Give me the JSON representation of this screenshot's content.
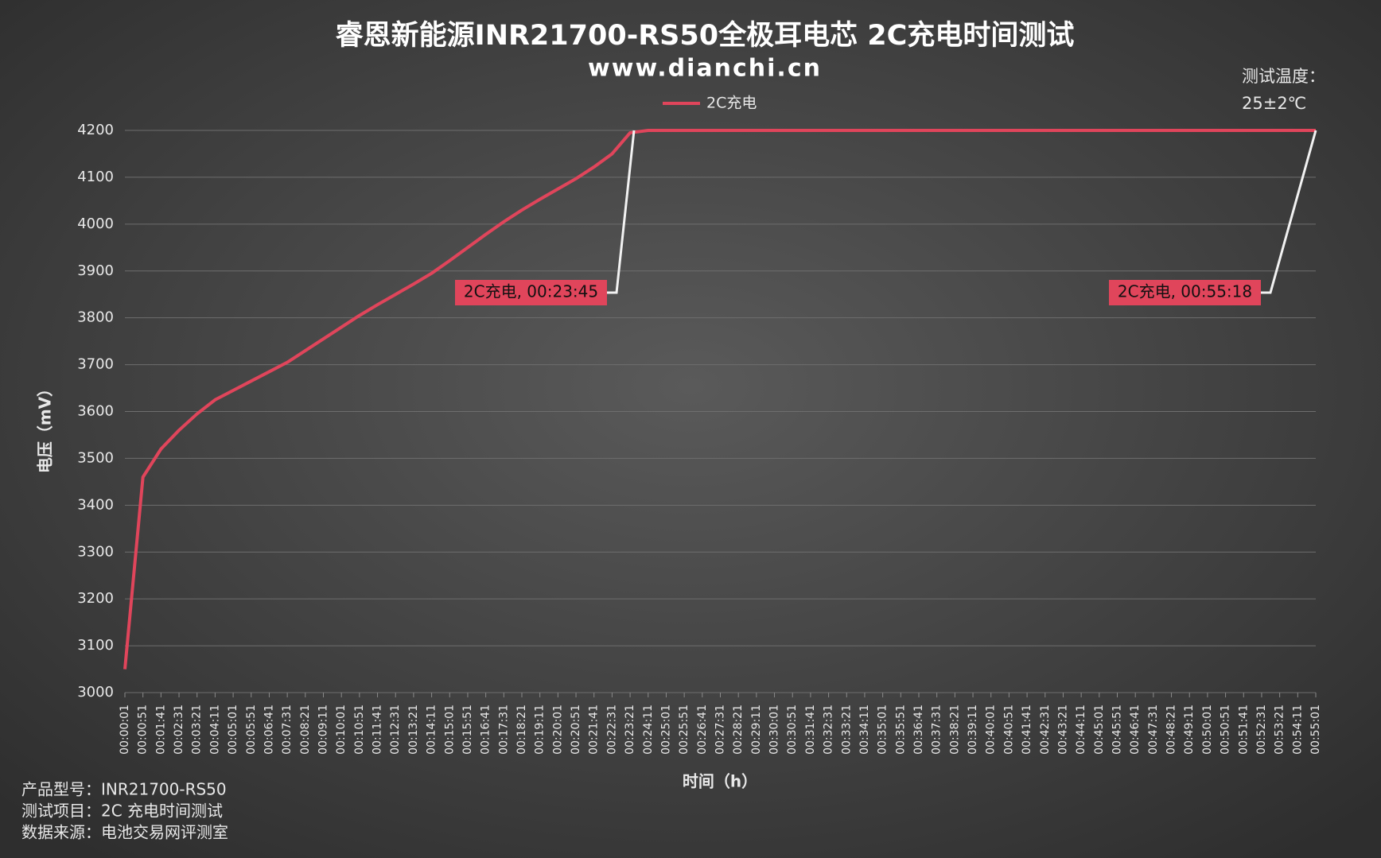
{
  "chart_data": {
    "type": "line",
    "title": "睿恩新能源INR21700-RS50全极耳电芯 2C充电时间测试",
    "subtitle": "www.dianchi.cn",
    "temperature_note": [
      "测试温度：",
      "25±2℃"
    ],
    "y_label": "电压（mV）",
    "x_label": "时间（h）",
    "footer": [
      "产品型号：INR21700-RS50",
      "测试项目：2C 充电时间测试",
      "数据来源：电池交易网评测室"
    ],
    "annotations": [
      "2C充电, 00:23:45",
      "2C充电, 00:55:18"
    ],
    "categories": [
      "00:00:01",
      "00:00:51",
      "00:01:41",
      "00:02:31",
      "00:03:21",
      "00:04:11",
      "00:05:01",
      "00:05:51",
      "00:06:41",
      "00:07:31",
      "00:08:21",
      "00:09:11",
      "00:10:01",
      "00:10:51",
      "00:11:41",
      "00:12:31",
      "00:13:21",
      "00:14:11",
      "00:15:01",
      "00:15:51",
      "00:16:41",
      "00:17:31",
      "00:18:21",
      "00:19:11",
      "00:20:01",
      "00:20:51",
      "00:21:41",
      "00:22:31",
      "00:23:21",
      "00:24:11",
      "00:25:01",
      "00:25:51",
      "00:26:41",
      "00:27:31",
      "00:28:21",
      "00:29:11",
      "00:30:01",
      "00:30:51",
      "00:31:41",
      "00:32:31",
      "00:33:21",
      "00:34:11",
      "00:35:01",
      "00:35:51",
      "00:36:41",
      "00:37:31",
      "00:38:21",
      "00:39:11",
      "00:40:01",
      "00:40:51",
      "00:41:41",
      "00:42:31",
      "00:43:21",
      "00:44:11",
      "00:45:01",
      "00:45:51",
      "00:46:41",
      "00:47:31",
      "00:48:21",
      "00:49:11",
      "00:50:01",
      "00:50:51",
      "00:51:41",
      "00:52:31",
      "00:53:21",
      "00:54:11",
      "00:55:01"
    ],
    "series": [
      {
        "name": "2C充电",
        "color": "#e0455b",
        "values": [
          3050,
          3460,
          3520,
          3560,
          3595,
          3625,
          3645,
          3665,
          3685,
          3705,
          3730,
          3755,
          3780,
          3805,
          3828,
          3850,
          3872,
          3895,
          3922,
          3950,
          3978,
          4005,
          4030,
          4053,
          4075,
          4097,
          4122,
          4150,
          4195,
          4200,
          4200,
          4200,
          4200,
          4200,
          4200,
          4200,
          4200,
          4200,
          4200,
          4200,
          4200,
          4200,
          4200,
          4200,
          4200,
          4200,
          4200,
          4200,
          4200,
          4200,
          4200,
          4200,
          4200,
          4200,
          4200,
          4200,
          4200,
          4200,
          4200,
          4200,
          4200,
          4200,
          4200,
          4200,
          4200,
          4200,
          4200
        ]
      }
    ],
    "ylim": [
      3000,
      4200
    ],
    "yticks": [
      3000,
      3100,
      3200,
      3300,
      3400,
      3500,
      3600,
      3700,
      3800,
      3900,
      4000,
      4100,
      4200
    ],
    "grid": true
  }
}
